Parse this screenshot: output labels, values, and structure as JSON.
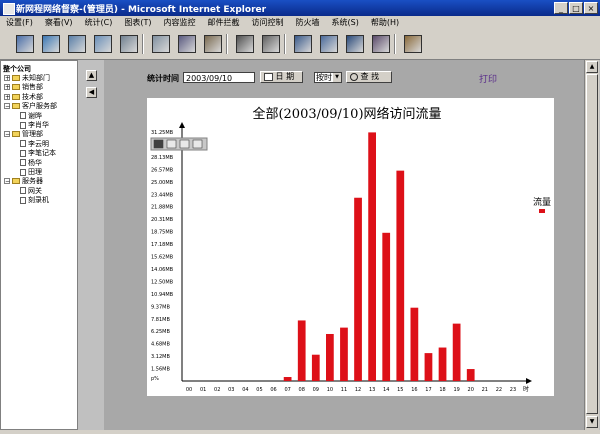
{
  "window": {
    "title": "新网程网络督察-(管理员) - Microsoft Internet Explorer",
    "controls": [
      "_",
      "□",
      "×"
    ]
  },
  "menu": [
    "设置(F)",
    "察看(V)",
    "统计(C)",
    "图表(T)",
    "内容监控",
    "邮件拦截",
    "访问控制",
    "防火墙",
    "系统(S)",
    "帮助(H)"
  ],
  "toolbar": {
    "icons": [
      "users-icon",
      "user-config-icon",
      "window-icon",
      "monitor-icon",
      "window-search-icon",
      "document-icon",
      "satellite-icon",
      "camera-icon",
      "bar-chart-icon",
      "clock-icon",
      "network-icon",
      "network-config-icon",
      "network-sync-icon",
      "user-network-icon",
      "package-icon"
    ]
  },
  "tree": {
    "root": "整个公司",
    "nodes": [
      {
        "label": "未知部门",
        "kind": "folder",
        "expander": "+"
      },
      {
        "label": "销售部",
        "kind": "folder",
        "expander": "+"
      },
      {
        "label": "技术部",
        "kind": "folder",
        "expander": "+"
      },
      {
        "label": "客户服务部",
        "kind": "folder",
        "expander": "−"
      },
      {
        "label": "谢晔",
        "kind": "doc",
        "expander": ""
      },
      {
        "label": "李肖华",
        "kind": "doc",
        "expander": ""
      },
      {
        "label": "管理部",
        "kind": "folder",
        "expander": "−"
      },
      {
        "label": "李云明",
        "kind": "doc",
        "expander": ""
      },
      {
        "label": "李笔记本",
        "kind": "doc",
        "expander": ""
      },
      {
        "label": "杨华",
        "kind": "doc",
        "expander": ""
      },
      {
        "label": "田理",
        "kind": "doc",
        "expander": ""
      },
      {
        "label": "服务器",
        "kind": "folder",
        "expander": "−"
      },
      {
        "label": "网关",
        "kind": "doc",
        "expander": ""
      },
      {
        "label": "刻录机",
        "kind": "doc",
        "expander": ""
      }
    ]
  },
  "controls": {
    "stat_time_label": "统计时间",
    "date_value": "2003/09/10",
    "date_button": "日 期",
    "period_value": "按时",
    "search_button": "查 找",
    "print_link": "打印"
  },
  "chart_data": {
    "type": "bar",
    "title": "全部(2003/09/10)网络访问流量",
    "legend": [
      "流量"
    ],
    "legend_position": "right",
    "colors": {
      "bar": "#dd1018"
    },
    "xlabel": "时",
    "ylabel": "",
    "y_unit_label": "p%",
    "categories": [
      "00",
      "01",
      "02",
      "03",
      "04",
      "05",
      "06",
      "07",
      "08",
      "09",
      "10",
      "11",
      "12",
      "13",
      "14",
      "15",
      "16",
      "17",
      "18",
      "19",
      "20",
      "21",
      "22",
      "23"
    ],
    "y_ticks": [
      "1.56MB",
      "3.12MB",
      "4.68MB",
      "6.25MB",
      "7.81MB",
      "9.37MB",
      "10.94MB",
      "12.50MB",
      "14.06MB",
      "15.62MB",
      "17.18MB",
      "18.75MB",
      "20.31MB",
      "21.88MB",
      "23.44MB",
      "25.00MB",
      "26.57MB",
      "28.13MB",
      "29.69MB",
      "31.25MB"
    ],
    "ylim": [
      0,
      31.25
    ],
    "values": [
      0,
      0,
      0,
      0,
      0,
      0,
      0,
      0.5,
      7.6,
      3.3,
      5.9,
      6.7,
      23.0,
      31.2,
      18.6,
      26.4,
      9.2,
      3.5,
      4.2,
      7.2,
      1.5,
      0,
      0,
      0
    ],
    "grid": false
  },
  "chart_toolbar": {
    "icons": [
      "save-icon",
      "print-icon",
      "mail-icon",
      "copy-icon"
    ]
  },
  "scrollbar": {
    "up": "▲",
    "down": "▼"
  },
  "nav": {
    "up": "▲",
    "left": "◀"
  }
}
